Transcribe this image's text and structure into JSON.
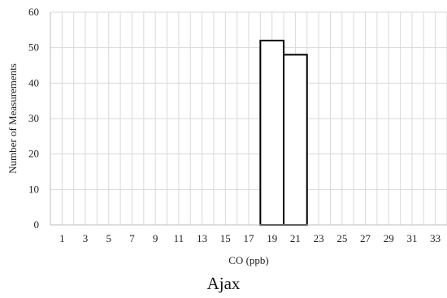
{
  "caption": "Ajax",
  "colors": {
    "grid": "#d9d9d9",
    "axis": "#bfbfbf",
    "bar_fill": "#ffffff",
    "bar_stroke": "#000000"
  },
  "chart_data": {
    "type": "bar",
    "title": "",
    "xlabel": "CO (ppb)",
    "ylabel": "Number of Measurements",
    "ylim": [
      0,
      60
    ],
    "y_ticks": [
      0,
      10,
      20,
      30,
      40,
      50,
      60
    ],
    "x_range": [
      0,
      34
    ],
    "x_tick_labels": [
      "1",
      "3",
      "5",
      "7",
      "9",
      "11",
      "13",
      "15",
      "17",
      "19",
      "21",
      "23",
      "25",
      "27",
      "29",
      "31",
      "33"
    ],
    "grid": true,
    "legend": "none",
    "bins": [
      {
        "from": 18,
        "to": 20,
        "value": 52
      },
      {
        "from": 20,
        "to": 22,
        "value": 48
      }
    ]
  }
}
